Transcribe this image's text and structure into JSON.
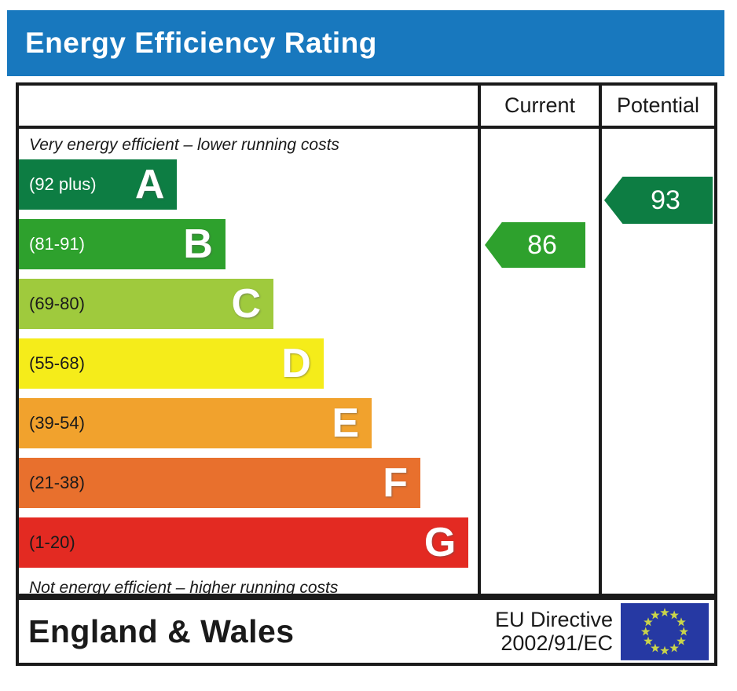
{
  "title": "Energy Efficiency Rating",
  "colors": {
    "title_bar": "#1878be",
    "border": "#1a1a1a",
    "current_arrow": "#2ea12d",
    "potential_arrow": "#0d7d43"
  },
  "table": {
    "header": {
      "current": "Current",
      "potential": "Potential"
    },
    "caption_top": "Very energy efficient – lower running costs",
    "caption_bottom": "Not energy efficient – higher running costs",
    "bands": [
      {
        "letter": "A",
        "range_label": "(92 plus)",
        "color": "#0d7d43",
        "text_color": "#ffffff",
        "width_pct": 34.5
      },
      {
        "letter": "B",
        "range_label": "(81-91)",
        "color": "#2ea12d",
        "text_color": "#ffffff",
        "width_pct": 45.0
      },
      {
        "letter": "C",
        "range_label": "(69-80)",
        "color": "#9fca3d",
        "text_color": "#1a1a1a",
        "width_pct": 55.5
      },
      {
        "letter": "D",
        "range_label": "(55-68)",
        "color": "#f5ec1a",
        "text_color": "#1a1a1a",
        "width_pct": 66.4
      },
      {
        "letter": "E",
        "range_label": "(39-54)",
        "color": "#f1a22d",
        "text_color": "#1a1a1a",
        "width_pct": 76.9
      },
      {
        "letter": "F",
        "range_label": "(21-38)",
        "color": "#e8702d",
        "text_color": "#1a1a1a",
        "width_pct": 87.5
      },
      {
        "letter": "G",
        "range_label": "(1-20)",
        "color": "#e32a22",
        "text_color": "#1a1a1a",
        "width_pct": 98.0
      }
    ],
    "current": {
      "value": "86",
      "band": "B"
    },
    "potential": {
      "value": "93",
      "band": "A"
    }
  },
  "footer": {
    "region": "England & Wales",
    "directive_line1": "EU Directive",
    "directive_line2": "2002/91/EC",
    "flag": {
      "blue": "#2639a3",
      "star": "#c9d44a"
    }
  },
  "chart_data": {
    "type": "bar",
    "title": "Energy Efficiency Rating",
    "categories": [
      "A (92 plus)",
      "B (81-91)",
      "C (69-80)",
      "D (55-68)",
      "E (39-54)",
      "F (21-38)",
      "G (1-20)"
    ],
    "band_score_ranges": [
      [
        92,
        100
      ],
      [
        81,
        91
      ],
      [
        69,
        80
      ],
      [
        55,
        68
      ],
      [
        39,
        54
      ],
      [
        21,
        38
      ],
      [
        1,
        20
      ]
    ],
    "band_relative_widths_pct": [
      34.5,
      45.0,
      55.5,
      66.4,
      76.9,
      87.5,
      98.0
    ],
    "series": [
      {
        "name": "Current",
        "value": 86,
        "band": "B"
      },
      {
        "name": "Potential",
        "value": 93,
        "band": "A"
      }
    ],
    "annotations": [
      "Very energy efficient – lower running costs",
      "Not energy efficient – higher running costs",
      "England & Wales",
      "EU Directive 2002/91/EC"
    ],
    "legend_position": "table-columns-right",
    "grid": false
  }
}
